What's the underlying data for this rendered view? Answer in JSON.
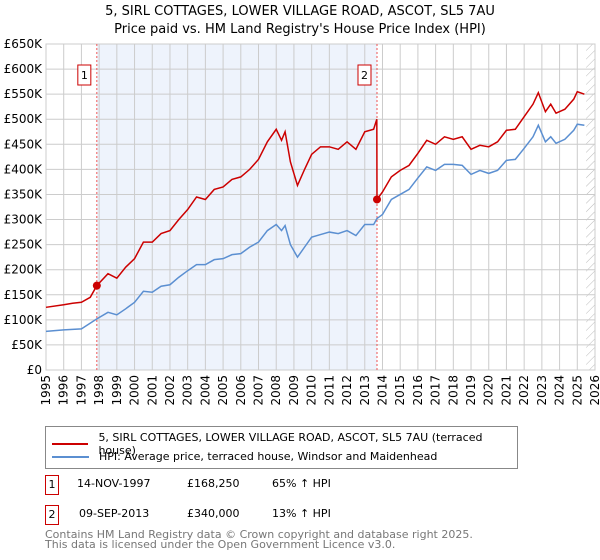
{
  "chart_data": {
    "type": "line",
    "title": "5, SIRL COTTAGES, LOWER VILLAGE ROAD, ASCOT, SL5 7AU",
    "subtitle": "Price paid vs. HM Land Registry's House Price Index (HPI)",
    "xlim": [
      1995,
      2026
    ],
    "ylim": [
      0,
      650000
    ],
    "x_ticks": [
      "1995",
      "1996",
      "1997",
      "1998",
      "1999",
      "2000",
      "2001",
      "2002",
      "2003",
      "2004",
      "2005",
      "2006",
      "2007",
      "2008",
      "2009",
      "2010",
      "2011",
      "2012",
      "2013",
      "2014",
      "2015",
      "2016",
      "2017",
      "2018",
      "2019",
      "2020",
      "2021",
      "2022",
      "2023",
      "2024",
      "2025",
      "2026"
    ],
    "y_ticks": [
      {
        "v": 0,
        "l": "£0"
      },
      {
        "v": 50000,
        "l": "£50K"
      },
      {
        "v": 100000,
        "l": "£100K"
      },
      {
        "v": 150000,
        "l": "£150K"
      },
      {
        "v": 200000,
        "l": "£200K"
      },
      {
        "v": 250000,
        "l": "£250K"
      },
      {
        "v": 300000,
        "l": "£300K"
      },
      {
        "v": 350000,
        "l": "£350K"
      },
      {
        "v": 400000,
        "l": "£400K"
      },
      {
        "v": 450000,
        "l": "£450K"
      },
      {
        "v": 500000,
        "l": "£500K"
      },
      {
        "v": 550000,
        "l": "£550K"
      },
      {
        "v": 600000,
        "l": "£600K"
      },
      {
        "v": 650000,
        "l": "£650K"
      }
    ],
    "grid": true,
    "shaded_range": [
      1997.87,
      2013.69
    ],
    "hatched_from": 2025.5,
    "series": [
      {
        "name": "5, SIRL COTTAGES, LOWER VILLAGE ROAD, ASCOT, SL5 7AU (terraced house)",
        "color": "#cc0000",
        "x": [
          1995,
          1996,
          1996.5,
          1997,
          1997.5,
          1997.87,
          1998.5,
          1999,
          1999.5,
          2000,
          2000.5,
          2001,
          2001.5,
          2002,
          2002.5,
          2003,
          2003.5,
          2004,
          2004.5,
          2005,
          2005.5,
          2006,
          2006.5,
          2007,
          2007.5,
          2008,
          2008.3,
          2008.5,
          2008.8,
          2009.2,
          2009.6,
          2010,
          2010.5,
          2011,
          2011.5,
          2012,
          2012.5,
          2013,
          2013.5,
          2013.68,
          2013.69,
          2014,
          2014.5,
          2015,
          2015.5,
          2016,
          2016.5,
          2017,
          2017.5,
          2018,
          2018.5,
          2019,
          2019.5,
          2020,
          2020.5,
          2021,
          2021.5,
          2022,
          2022.5,
          2022.8,
          2023.2,
          2023.5,
          2023.8,
          2024.3,
          2024.8,
          2025,
          2025.4
        ],
        "y": [
          125000,
          130000,
          133000,
          135000,
          145000,
          168250,
          192000,
          183000,
          205000,
          222000,
          255000,
          255000,
          272000,
          278000,
          300000,
          320000,
          345000,
          340000,
          360000,
          365000,
          380000,
          385000,
          400000,
          420000,
          455000,
          480000,
          458000,
          475000,
          415000,
          368000,
          400000,
          430000,
          445000,
          445000,
          440000,
          455000,
          440000,
          475000,
          480000,
          500000,
          340000,
          355000,
          385000,
          398000,
          408000,
          432000,
          458000,
          450000,
          465000,
          460000,
          465000,
          440000,
          448000,
          445000,
          455000,
          478000,
          480000,
          505000,
          530000,
          553000,
          515000,
          530000,
          512000,
          520000,
          540000,
          555000,
          550000
        ]
      },
      {
        "name": "HPI: Average price, terraced house, Windsor and Maidenhead",
        "color": "#5b8fd1",
        "x": [
          1995,
          1996,
          1997,
          1997.87,
          1998.5,
          1999,
          1999.5,
          2000,
          2000.5,
          2001,
          2001.5,
          2002,
          2002.5,
          2003,
          2003.5,
          2004,
          2004.5,
          2005,
          2005.5,
          2006,
          2006.5,
          2007,
          2007.5,
          2008,
          2008.3,
          2008.5,
          2008.8,
          2009.2,
          2009.6,
          2010,
          2010.5,
          2011,
          2011.5,
          2012,
          2012.5,
          2013,
          2013.5,
          2013.69,
          2014,
          2014.5,
          2015,
          2015.5,
          2016,
          2016.5,
          2017,
          2017.5,
          2018,
          2018.5,
          2019,
          2019.5,
          2020,
          2020.5,
          2021,
          2021.5,
          2022,
          2022.5,
          2022.8,
          2023.2,
          2023.5,
          2023.8,
          2024.3,
          2024.8,
          2025,
          2025.4
        ],
        "y": [
          77000,
          80000,
          82000,
          102000,
          115000,
          110000,
          122000,
          135000,
          157000,
          155000,
          167000,
          170000,
          185000,
          198000,
          210000,
          210000,
          220000,
          222000,
          230000,
          232000,
          245000,
          255000,
          278000,
          290000,
          278000,
          288000,
          250000,
          225000,
          245000,
          265000,
          270000,
          275000,
          272000,
          278000,
          268000,
          290000,
          290000,
          302000,
          310000,
          340000,
          350000,
          360000,
          383000,
          405000,
          398000,
          410000,
          410000,
          408000,
          390000,
          398000,
          392000,
          398000,
          418000,
          420000,
          442000,
          465000,
          488000,
          455000,
          465000,
          452000,
          460000,
          478000,
          490000,
          488000
        ]
      }
    ],
    "annotations": [
      {
        "label": "1",
        "x": 1997.87,
        "y": 168250
      },
      {
        "label": "2",
        "x": 2013.69,
        "y": 340000
      }
    ]
  },
  "transactions": [
    {
      "num": "1",
      "date": "14-NOV-1997",
      "price": "£168,250",
      "hpi": "65% ↑ HPI"
    },
    {
      "num": "2",
      "date": "09-SEP-2013",
      "price": "£340,000",
      "hpi": "13% ↑ HPI"
    }
  ],
  "footer": {
    "line1": "Contains HM Land Registry data © Crown copyright and database right 2025.",
    "line2": "This data is licensed under the Open Government Licence v3.0."
  }
}
